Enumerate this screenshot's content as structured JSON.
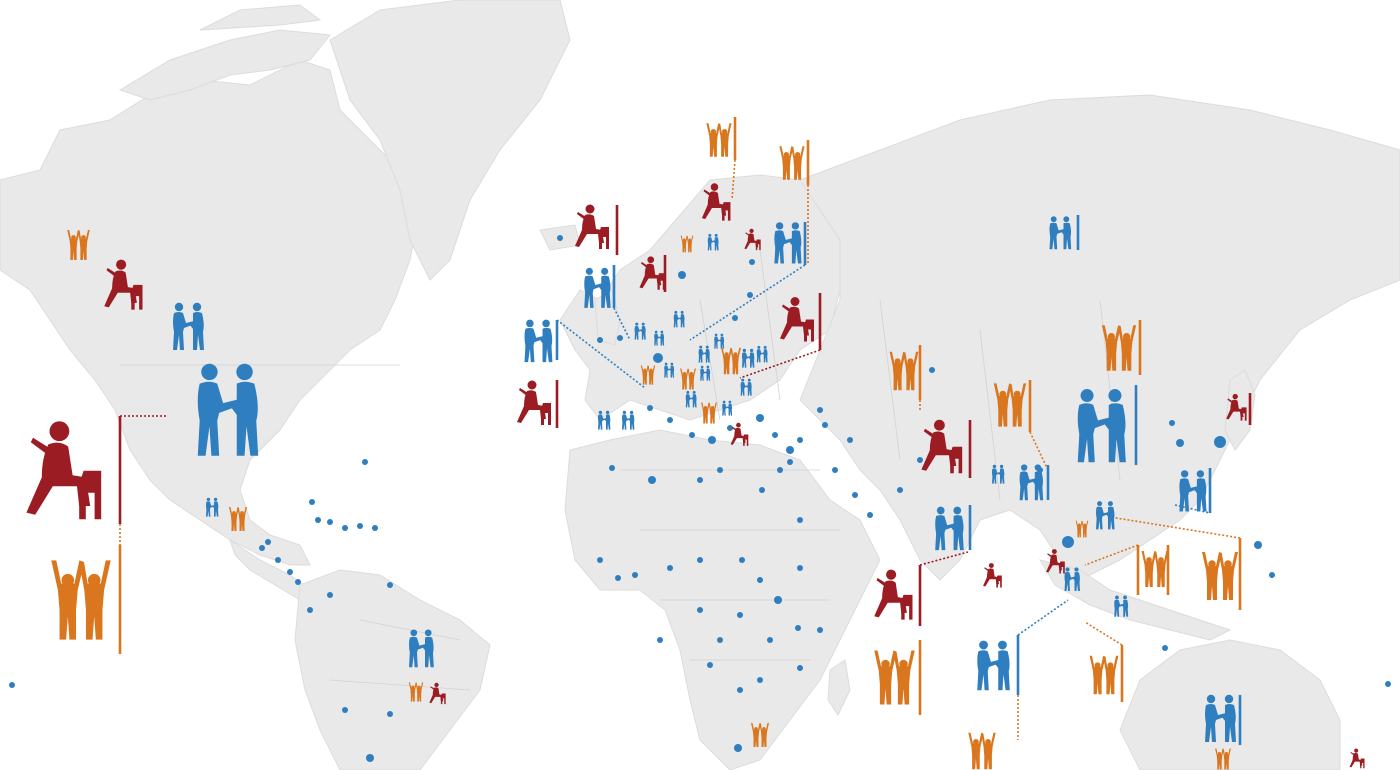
{
  "colors": {
    "land": "#e9e9e9",
    "background": "#ffffff",
    "blue": "#2f7fc0",
    "red": "#9b1c22",
    "orange": "#d9761e"
  },
  "icons": {
    "couple": "couple-talking-icon",
    "seated": "seated-person-icon",
    "raised": "people-raised-arms-icon"
  }
}
